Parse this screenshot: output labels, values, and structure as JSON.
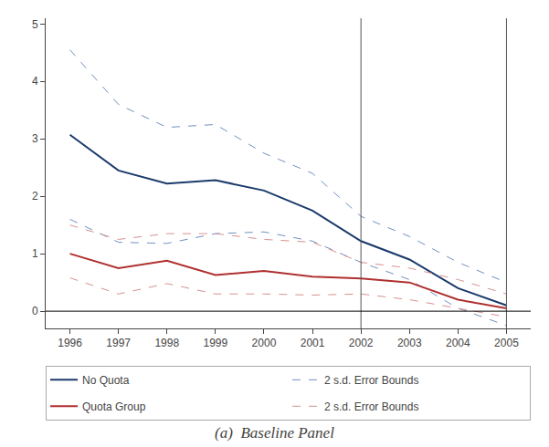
{
  "chart_data": {
    "type": "line",
    "title": "(a)  Baseline Panel",
    "x": [
      1996,
      1997,
      1998,
      1999,
      2000,
      2001,
      2002,
      2003,
      2004,
      2005
    ],
    "series": [
      {
        "name": "No Quota",
        "color": "#1a3a6b",
        "line_style": "solid",
        "values": [
          3.07,
          2.45,
          2.22,
          2.28,
          2.1,
          1.75,
          1.22,
          0.9,
          0.4,
          0.1
        ]
      },
      {
        "name": "2 s.d. Error Bounds",
        "color": "#7090c0",
        "line_style": "dashed",
        "values": [
          4.55,
          3.6,
          3.2,
          3.25,
          2.75,
          2.4,
          1.65,
          1.3,
          0.85,
          0.5
        ]
      },
      {
        "name": "2 s.d. Error Bounds",
        "color": "#7090c0",
        "line_style": "dashed",
        "values": [
          1.6,
          1.2,
          1.18,
          1.35,
          1.38,
          1.22,
          0.85,
          0.55,
          0.05,
          -0.25
        ]
      },
      {
        "name": "Quota Group",
        "color": "#b03030",
        "line_style": "solid",
        "values": [
          1.0,
          0.75,
          0.88,
          0.63,
          0.7,
          0.6,
          0.57,
          0.5,
          0.2,
          0.05
        ]
      },
      {
        "name": "2 s.d. Error Bounds",
        "color": "#d89090",
        "line_style": "dashed",
        "values": [
          1.5,
          1.25,
          1.35,
          1.35,
          1.25,
          1.2,
          0.85,
          0.75,
          0.55,
          0.3
        ]
      },
      {
        "name": "2 s.d. Error Bounds",
        "color": "#d89090",
        "line_style": "dashed",
        "values": [
          0.58,
          0.3,
          0.48,
          0.3,
          0.3,
          0.28,
          0.3,
          0.2,
          0.05,
          -0.1
        ]
      }
    ],
    "xlim": [
      1995.5,
      2005.5
    ],
    "xticks": [
      1996,
      1997,
      1998,
      1999,
      2000,
      2001,
      2002,
      2003,
      2004,
      2005
    ],
    "ylim": [
      -0.3,
      5.1
    ],
    "yticks": [
      0,
      1,
      2,
      3,
      4,
      5
    ],
    "vlines": [
      2002,
      2005
    ],
    "hlines": [
      0
    ],
    "grid": false,
    "legend": "bottom"
  }
}
